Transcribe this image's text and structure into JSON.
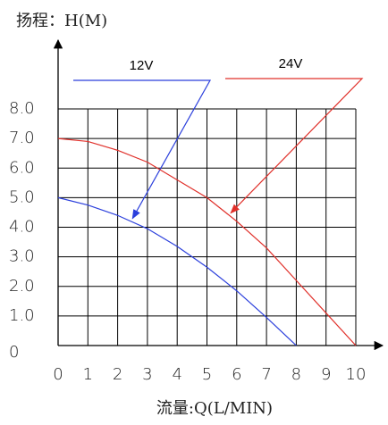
{
  "chart_data": {
    "type": "line",
    "title": "扬程：H(M)",
    "x_label": "流量:Q(L/MIN)",
    "xlim": [
      0,
      10
    ],
    "ylim": [
      0,
      8
    ],
    "xticks": [
      0,
      1,
      2,
      3,
      4,
      5,
      6,
      7,
      8,
      9,
      10
    ],
    "yticks": [
      0,
      {
        "value": 1,
        "label": "1.0"
      },
      {
        "value": 2,
        "label": "2.0"
      },
      {
        "value": 3,
        "label": "3.0"
      },
      {
        "value": 4,
        "label": "4.0"
      },
      {
        "value": 5,
        "label": "5.0"
      },
      {
        "value": 6,
        "label": "6.0"
      },
      {
        "value": 7,
        "label": "7.0"
      },
      {
        "value": 8,
        "label": "8.0"
      }
    ],
    "grid": true,
    "series": [
      {
        "name": "12V",
        "color": "#2b3fdc",
        "x": [
          0,
          1,
          2,
          3,
          4,
          5,
          6,
          7,
          8
        ],
        "values": [
          5,
          4.75,
          4.4,
          3.95,
          3.35,
          2.65,
          1.85,
          0.95,
          0
        ]
      },
      {
        "name": "24V",
        "color": "#e0302a",
        "x": [
          0,
          1,
          2,
          3,
          4,
          5,
          6,
          7,
          8,
          9,
          10
        ],
        "values": [
          7,
          6.9,
          6.6,
          6.2,
          5.6,
          5.0,
          4.2,
          3.3,
          2.2,
          1.1,
          0
        ]
      }
    ]
  }
}
